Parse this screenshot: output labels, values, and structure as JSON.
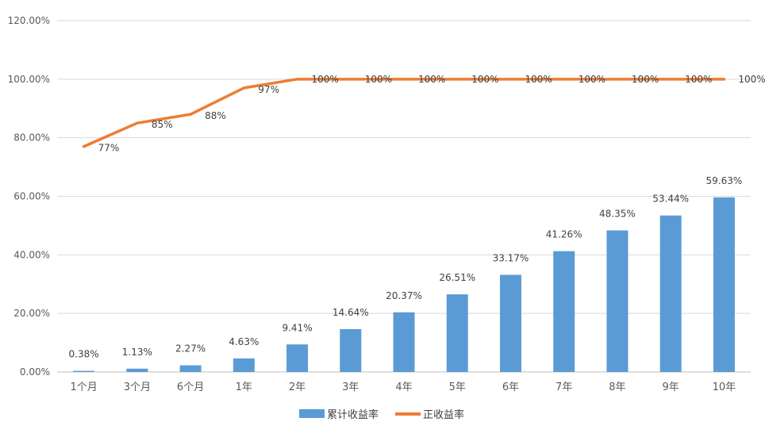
{
  "chart_data": {
    "type": "bar",
    "title": "",
    "xlabel": "",
    "ylabel": "",
    "ylim": [
      0,
      120
    ],
    "yticks": [
      "0.00%",
      "20.00%",
      "40.00%",
      "60.00%",
      "80.00%",
      "100.00%",
      "120.00%"
    ],
    "ytick_values": [
      0,
      20,
      40,
      60,
      80,
      100,
      120
    ],
    "grid": true,
    "legend_position": "bottom",
    "categories": [
      "1个月",
      "3个月",
      "6个月",
      "1年",
      "2年",
      "3年",
      "4年",
      "5年",
      "6年",
      "7年",
      "8年",
      "9年",
      "10年"
    ],
    "series": [
      {
        "name": "累计收益率",
        "type": "bar",
        "color": "#5b9bd5",
        "values": [
          0.38,
          1.13,
          2.27,
          4.63,
          9.41,
          14.64,
          20.37,
          26.51,
          33.17,
          41.26,
          48.35,
          53.44,
          59.63
        ],
        "labels": [
          "0.38%",
          "1.13%",
          "2.27%",
          "4.63%",
          "9.41%",
          "14.64%",
          "20.37%",
          "26.51%",
          "33.17%",
          "41.26%",
          "48.35%",
          "53.44%",
          "59.63%"
        ]
      },
      {
        "name": "正收益率",
        "type": "line",
        "color": "#ed7d31",
        "values": [
          77,
          85,
          88,
          97,
          100,
          100,
          100,
          100,
          100,
          100,
          100,
          100,
          100
        ],
        "labels": [
          "77%",
          "85%",
          "88%",
          "97%",
          "100%",
          "100%",
          "100%",
          "100%",
          "100%",
          "100%",
          "100%",
          "100%",
          "100%"
        ]
      }
    ]
  }
}
